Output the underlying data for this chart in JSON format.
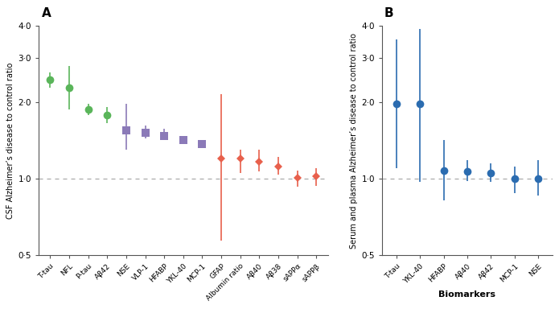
{
  "panel_A": {
    "title": "A",
    "ylabel": "CSF Alzheimer’s disease to control ratio",
    "ylim": [
      0.5,
      4.0
    ],
    "yticks": [
      0.5,
      1.0,
      2.0,
      3.0,
      4.0
    ],
    "ytick_labels": [
      "0·5",
      "1·0",
      "2·0",
      "3·0",
      "4·0"
    ],
    "hline": 1.0,
    "groups": [
      {
        "name": "green_circles",
        "marker": "o",
        "color": "#5ab55a",
        "labels": [
          "T-tau",
          "NFL",
          "P-tau",
          "Aβ42"
        ],
        "values": [
          2.45,
          2.28,
          1.88,
          1.78
        ],
        "ci_low": [
          2.28,
          1.88,
          1.78,
          1.65
        ],
        "ci_high": [
          2.62,
          2.78,
          1.98,
          1.91
        ]
      },
      {
        "name": "purple_squares",
        "marker": "s",
        "color": "#8b7ab8",
        "labels": [
          "NSE",
          "VLP-1",
          "HFABP",
          "YKL-40",
          "MCP-1"
        ],
        "values": [
          1.55,
          1.52,
          1.47,
          1.42,
          1.37
        ],
        "ci_low": [
          1.3,
          1.44,
          1.42,
          1.38,
          1.32
        ],
        "ci_high": [
          1.98,
          1.62,
          1.57,
          1.47,
          1.42
        ]
      },
      {
        "name": "red_diamonds",
        "marker": "D",
        "color": "#e8604c",
        "labels": [
          "GFAP",
          "Albumin ratio",
          "Aβ40",
          "Aβ38",
          "sAPPα",
          "sAPPβ"
        ],
        "values": [
          1.2,
          1.2,
          1.17,
          1.12,
          1.01,
          1.02
        ],
        "ci_low": [
          0.57,
          1.05,
          1.07,
          1.04,
          0.93,
          0.94
        ],
        "ci_high": [
          2.15,
          1.3,
          1.3,
          1.22,
          1.08,
          1.1
        ]
      }
    ]
  },
  "panel_B": {
    "title": "B",
    "ylabel": "Serum and plasma Alzheimer’s disease to control ratio",
    "xlabel": "Biomarkers",
    "ylim": [
      0.5,
      4.0
    ],
    "yticks": [
      0.5,
      1.0,
      2.0,
      3.0,
      4.0
    ],
    "ytick_labels": [
      "0·5",
      "1·0",
      "2·0",
      "3·0",
      "4·0"
    ],
    "hline": 1.0,
    "groups": [
      {
        "name": "blue_circles",
        "marker": "o",
        "color": "#2b6cb0",
        "labels": [
          "T-tau",
          "YKL-40",
          "HFABP",
          "Aβ40",
          "Aβ42",
          "MCP-1",
          "NSE"
        ],
        "values": [
          1.97,
          1.97,
          1.08,
          1.07,
          1.05,
          1.0,
          1.0
        ],
        "ci_low": [
          1.1,
          0.97,
          0.82,
          0.98,
          0.97,
          0.88,
          0.86
        ],
        "ci_high": [
          3.55,
          3.9,
          1.42,
          1.18,
          1.15,
          1.12,
          1.18
        ]
      }
    ]
  },
  "background_color": "#ffffff",
  "figsize": [
    6.95,
    3.84
  ],
  "dpi": 100
}
